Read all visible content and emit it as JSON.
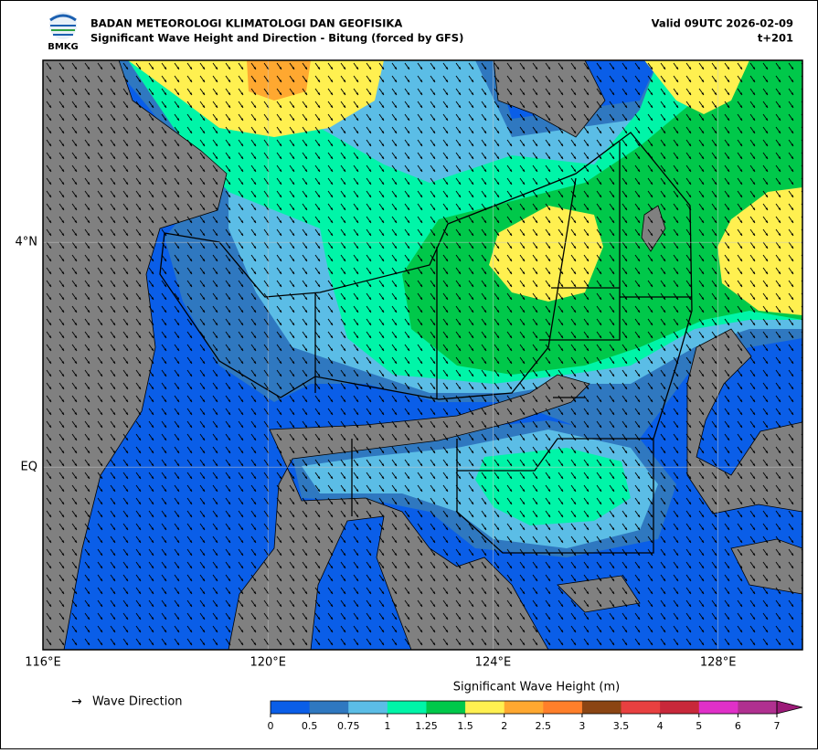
{
  "header": {
    "agency": "BADAN METEOROLOGI KLIMATOLOGI DAN GEOFISIKA",
    "title": "Significant Wave Height and Direction - Bitung (forced by GFS)",
    "valid": "Valid 09UTC 2026-02-09",
    "lead": "t+201",
    "logo": "BMKG"
  },
  "map": {
    "xlim": [
      116,
      129.5
    ],
    "ylim": [
      -3.25,
      7.24
    ],
    "lon_ticks": [
      {
        "value": 116,
        "label": "116°E"
      },
      {
        "value": 120,
        "label": "120°E"
      },
      {
        "value": 124,
        "label": "124°E"
      },
      {
        "value": 128,
        "label": "128°E"
      }
    ],
    "lat_ticks": [
      {
        "value": 4,
        "label": "4°N"
      },
      {
        "value": 0,
        "label": "EQ"
      }
    ]
  },
  "legend": {
    "arrow": "→",
    "label": "Wave Direction"
  },
  "colorbar": {
    "title": "Significant Wave Height (m)",
    "ticks": [
      0,
      0.5,
      0.75,
      1,
      1.25,
      1.5,
      2,
      2.5,
      3,
      3.5,
      4,
      5,
      6,
      7
    ],
    "colors": [
      "#0a5ee8",
      "#2f78c0",
      "#5bbde6",
      "#00f5a8",
      "#00c84a",
      "#fff050",
      "#ffa830",
      "#ff7f2a",
      "#8b4513",
      "#e84040",
      "#c8283a",
      "#e030c8",
      "#b03090"
    ],
    "extend_color": "#9c1a78"
  }
}
